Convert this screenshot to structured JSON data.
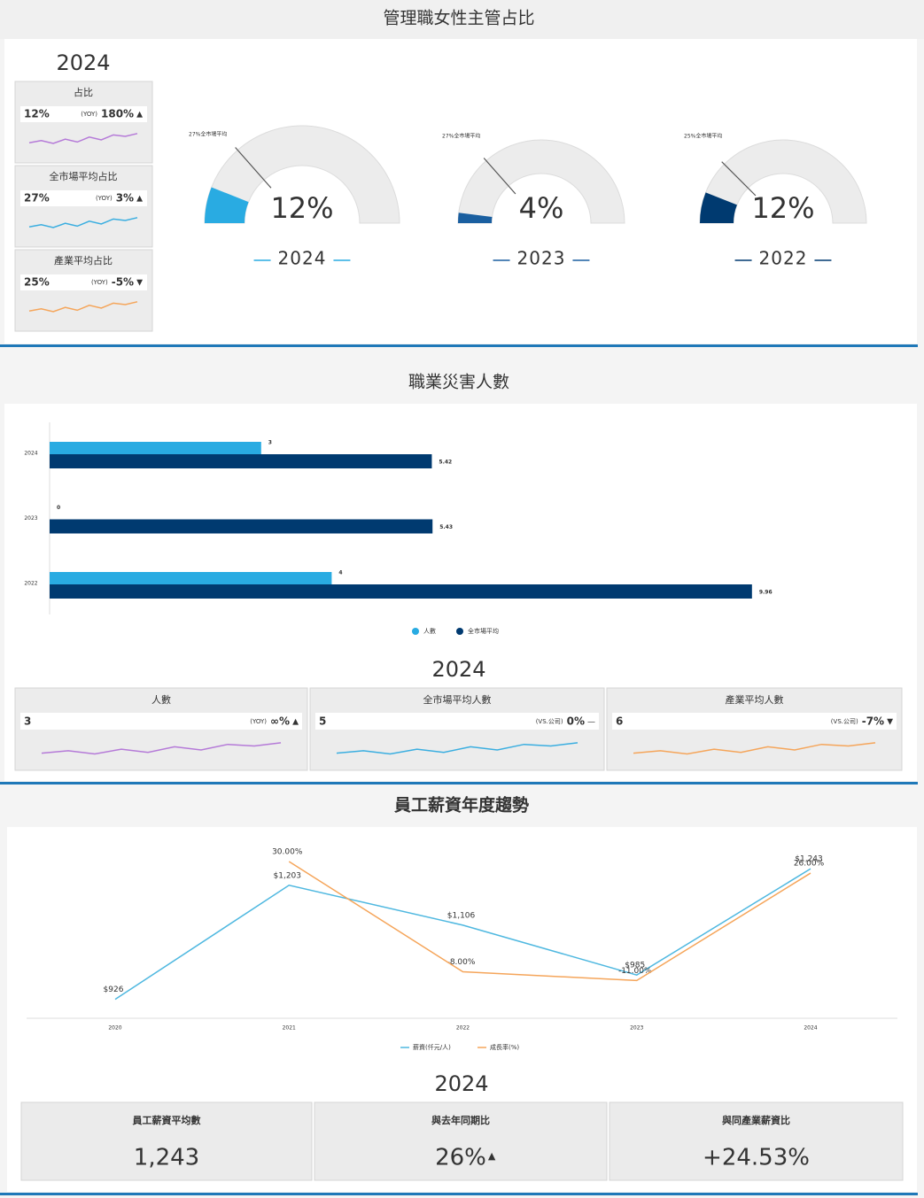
{
  "dashboard": {
    "women_section": {
      "title": "管理職女性主管占比",
      "year": "2024",
      "cards": [
        {
          "title": "占比",
          "value": "12%",
          "compare": "(YOY)",
          "change": "180%",
          "arrow": "▲",
          "change_color": "#e0303a",
          "spark_color": "#b57ad8"
        },
        {
          "title": "全市場平均占比",
          "value": "27%",
          "compare": "(YOY)",
          "change": "3%",
          "arrow": "▲",
          "change_color": "#e0303a",
          "spark_color": "#3aaee0"
        },
        {
          "title": "產業平均占比",
          "value": "25%",
          "compare": "(YOY)",
          "change": "-5%",
          "arrow": "▼",
          "change_color": "#2e9c5a",
          "spark_color": "#f5a55a"
        }
      ]
    },
    "injury_section": {
      "year": "2024",
      "cards": [
        {
          "title": "人數",
          "value": "3",
          "compare": "(YOY)",
          "change": "∞%",
          "arrow": "▲",
          "change_color": "#e0303a",
          "spark_color": "#b57ad8"
        },
        {
          "title": "全市場平均人數",
          "value": "5",
          "compare": "(VS.公司)",
          "change": "0%",
          "arrow": "—",
          "change_color": "#888888",
          "spark_color": "#3aaee0"
        },
        {
          "title": "產業平均人數",
          "value": "6",
          "compare": "(VS.公司)",
          "change": "-7%",
          "arrow": "▼",
          "change_color": "#2e9c5a",
          "spark_color": "#f5a55a"
        }
      ]
    },
    "salary_section": {
      "year": "2024",
      "cards": [
        {
          "title": "員工薪資平均數",
          "value": "1,243"
        },
        {
          "title": "與去年同期比",
          "value": "26%",
          "arrow": "▲"
        },
        {
          "title": "與同產業薪資比",
          "value": "+24.53%"
        }
      ]
    }
  },
  "chart_data": [
    {
      "type": "gauge",
      "categories": [
        "2024"
      ],
      "values": [
        12
      ],
      "value_labels": [
        "12%"
      ],
      "ylim": [
        0,
        100
      ],
      "color": "#29abe2",
      "annotation": {
        "value": 27,
        "label": "27%全市場平均"
      }
    },
    {
      "type": "gauge",
      "categories": [
        "2023"
      ],
      "values": [
        4
      ],
      "value_labels": [
        "4%"
      ],
      "ylim": [
        0,
        100
      ],
      "color": "#1a5fa0",
      "annotation": {
        "value": 27,
        "label": "27%全市場平均"
      }
    },
    {
      "type": "gauge",
      "categories": [
        "2022"
      ],
      "values": [
        12
      ],
      "value_labels": [
        "12%"
      ],
      "ylim": [
        0,
        100
      ],
      "color": "#003a70",
      "annotation": {
        "value": 25,
        "label": "25%全市場平均"
      }
    },
    {
      "type": "bar",
      "orientation": "horizontal",
      "title": "職業災害人數",
      "categories": [
        "2024",
        "2023",
        "2022"
      ],
      "xlim": [
        0,
        10
      ],
      "series": [
        {
          "name": "人數",
          "color": "#29abe2",
          "values": [
            3,
            0,
            4
          ]
        },
        {
          "name": "全市場平均",
          "color": "#003a70",
          "values": [
            5.42,
            5.43,
            9.96
          ]
        }
      ]
    },
    {
      "type": "line",
      "title": "員工薪資年度趨勢",
      "categories": [
        "2020",
        "2021",
        "2022",
        "2023",
        "2024"
      ],
      "ylim": [
        880,
        1310
      ],
      "y2lim": [
        -24,
        37
      ],
      "series": [
        {
          "name": "薪資(仟元/人)",
          "color": "#4fb8e0",
          "values": [
            926,
            1203,
            1106,
            985,
            1243
          ],
          "value_labels": [
            "$926",
            "$1,203",
            "$1,106",
            "$985",
            "$1,243"
          ]
        },
        {
          "name": "成長率(%)",
          "color": "#f5a55a",
          "axis": "y2",
          "values": [
            null,
            30,
            -8,
            -11,
            26
          ],
          "value_labels": [
            null,
            "30.00%",
            "-8.00%",
            "-11.00%",
            "26.00%"
          ]
        }
      ]
    }
  ]
}
